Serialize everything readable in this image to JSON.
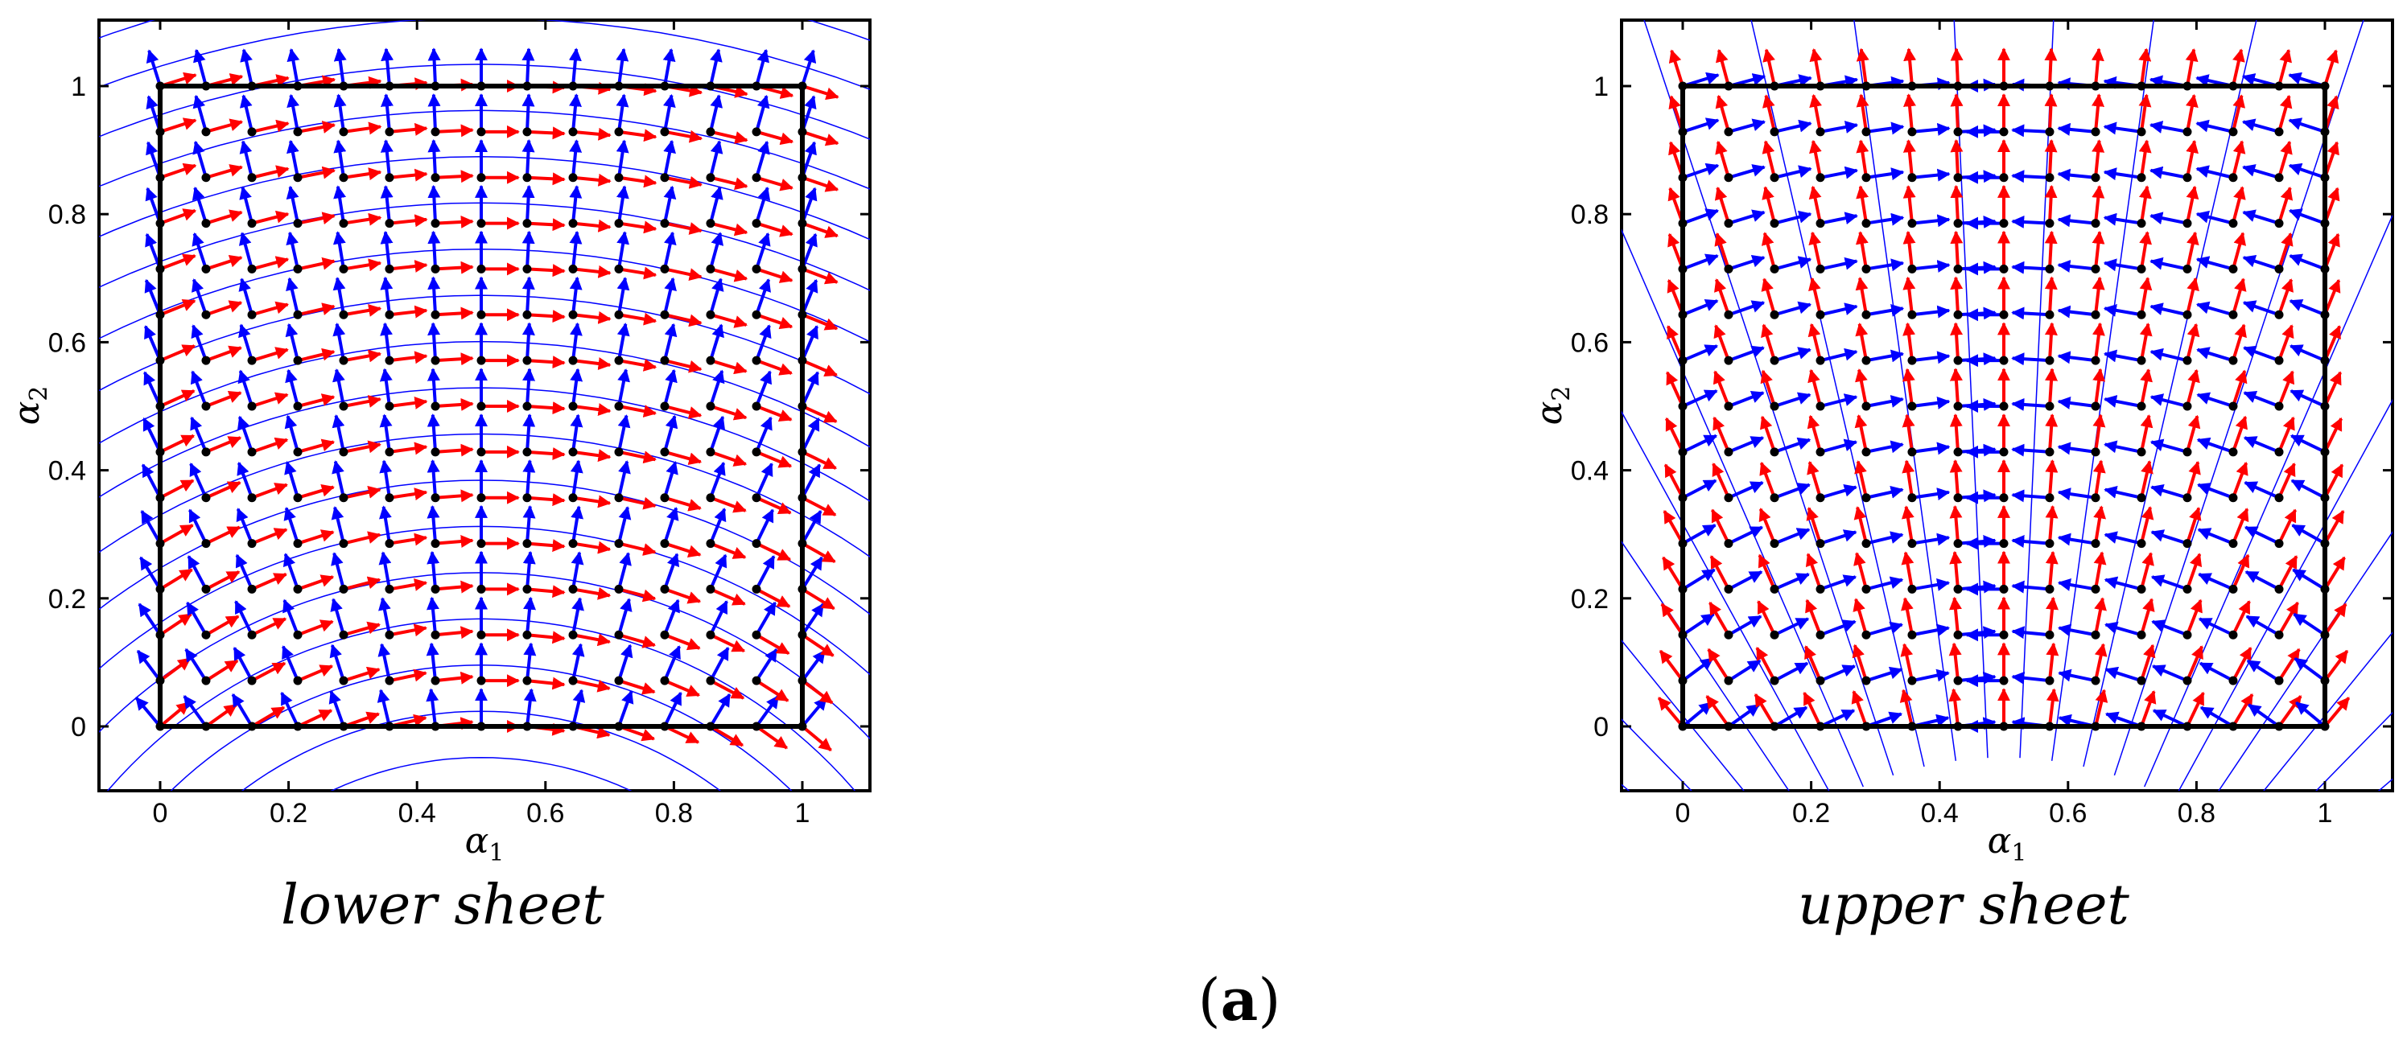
{
  "figure_label": {
    "open": "(",
    "letter": "a",
    "close": ")"
  },
  "colors": {
    "red_arrow": "#ff0000",
    "blue_arrow": "#0000ff",
    "flow_line": "#0000ff",
    "point": "#000000",
    "frame": "#000000"
  },
  "chart_data": [
    {
      "type": "vector-field",
      "title": "lower sheet",
      "xlabel": "α1",
      "ylabel": "α2",
      "xlim": [
        -0.1,
        1.1
      ],
      "ylim": [
        -0.1,
        1.1
      ],
      "xticks": [
        0,
        0.2,
        0.4,
        0.6,
        0.8,
        1
      ],
      "yticks": [
        0,
        0.2,
        0.4,
        0.6,
        0.8,
        1
      ],
      "xtick_labels": [
        "0",
        "0.2",
        "0.4",
        "0.6",
        "0.8",
        "1"
      ],
      "ytick_labels": [
        "0",
        "0.2",
        "0.4",
        "0.6",
        "0.8",
        "1"
      ],
      "grid_x": [
        0,
        0.0714,
        0.1429,
        0.2143,
        0.2857,
        0.3571,
        0.4286,
        0.5,
        0.5714,
        0.6429,
        0.7143,
        0.7857,
        0.8571,
        0.9286,
        1
      ],
      "grid_y": [
        0,
        0.0714,
        0.1429,
        0.2143,
        0.2857,
        0.3571,
        0.4286,
        0.5,
        0.5714,
        0.6429,
        0.7143,
        0.7857,
        0.8571,
        0.9286,
        1
      ],
      "unit_square": [
        [
          0,
          0
        ],
        [
          1,
          1
        ]
      ],
      "field": {
        "kind": "concentric-arcs",
        "center": [
          0.5,
          -0.6
        ]
      },
      "series": [
        {
          "name": "red",
          "color": "#ff0000"
        },
        {
          "name": "blue",
          "color": "#0000ff"
        }
      ]
    },
    {
      "type": "vector-field",
      "title": "upper sheet",
      "xlabel": "α1",
      "ylabel": "α2",
      "xlim": [
        -0.1,
        1.1
      ],
      "ylim": [
        -0.1,
        1.1
      ],
      "xticks": [
        0,
        0.2,
        0.4,
        0.6,
        0.8,
        1
      ],
      "yticks": [
        0,
        0.2,
        0.4,
        0.6,
        0.8,
        1
      ],
      "xtick_labels": [
        "0",
        "0.2",
        "0.4",
        "0.6",
        "0.8",
        "1"
      ],
      "ytick_labels": [
        "0",
        "0.2",
        "0.4",
        "0.6",
        "0.8",
        "1"
      ],
      "grid_x": [
        0,
        0.0714,
        0.1429,
        0.2143,
        0.2857,
        0.3571,
        0.4286,
        0.5,
        0.5714,
        0.6429,
        0.7143,
        0.7857,
        0.8571,
        0.9286,
        1
      ],
      "grid_y": [
        0,
        0.0714,
        0.1429,
        0.2143,
        0.2857,
        0.3571,
        0.4286,
        0.5,
        0.5714,
        0.6429,
        0.7143,
        0.7857,
        0.8571,
        0.9286,
        1
      ],
      "unit_square": [
        [
          0,
          0
        ],
        [
          1,
          1
        ]
      ],
      "field": {
        "kind": "radial-fan",
        "center": [
          0.5,
          -0.6
        ]
      },
      "series": [
        {
          "name": "red",
          "color": "#ff0000"
        },
        {
          "name": "blue",
          "color": "#0000ff"
        }
      ]
    }
  ]
}
